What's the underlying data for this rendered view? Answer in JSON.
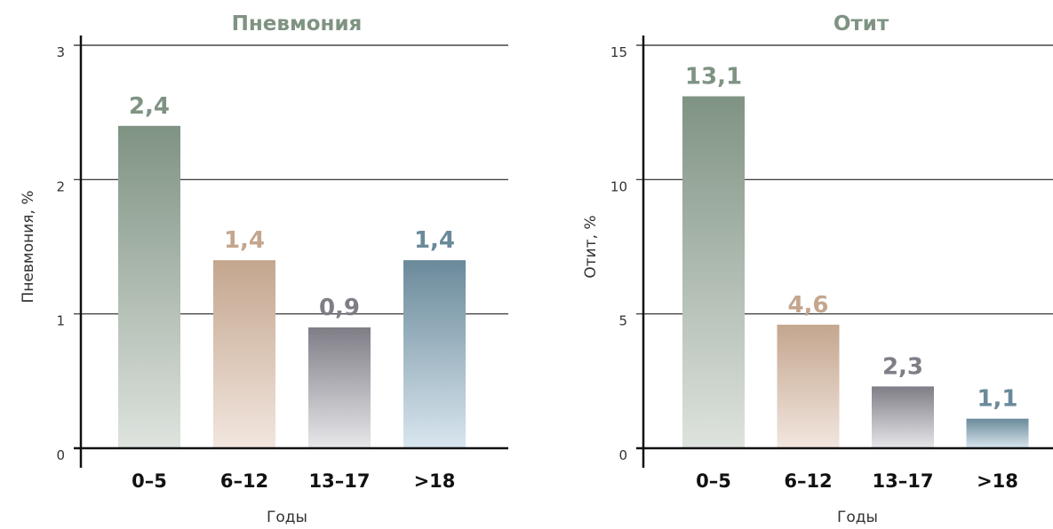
{
  "colors": {
    "green": "#7f9383",
    "green_light": "#dee3de",
    "tan": "#c4a68e",
    "tan_light": "#f2e6df",
    "grey": "#7f7e87",
    "grey_light": "#e7e7ea",
    "blue": "#6a8a9a",
    "blue_light": "#d9e6ef",
    "title": "#7f9383",
    "axis": "#111111",
    "grid": "#222222"
  },
  "chart_data": [
    {
      "type": "bar",
      "title": "Пневмония",
      "xlabel": "Годы",
      "ylabel": "Пневмония, %",
      "categories": [
        "0–5",
        "6–12",
        "13–17",
        ">18"
      ],
      "values": [
        2.4,
        1.4,
        0.9,
        1.4
      ],
      "value_labels": [
        "2,4",
        "1,4",
        "0,9",
        "1,4"
      ],
      "yticks": [
        "0",
        "1",
        "2",
        "3"
      ],
      "ylim": [
        0,
        3
      ],
      "grid": true,
      "bar_colors": [
        "green",
        "tan",
        "grey",
        "blue"
      ]
    },
    {
      "type": "bar",
      "title": "Отит",
      "xlabel": "Годы",
      "ylabel": "Отит, %",
      "categories": [
        "0–5",
        "6–12",
        "13–17",
        ">18"
      ],
      "values": [
        13.1,
        4.6,
        2.3,
        1.1
      ],
      "value_labels": [
        "13,1",
        "4,6",
        "2,3",
        "1,1"
      ],
      "yticks": [
        "0",
        "5",
        "10",
        "15"
      ],
      "ylim": [
        0,
        15
      ],
      "grid": true,
      "bar_colors": [
        "green",
        "tan",
        "grey",
        "blue"
      ]
    }
  ]
}
